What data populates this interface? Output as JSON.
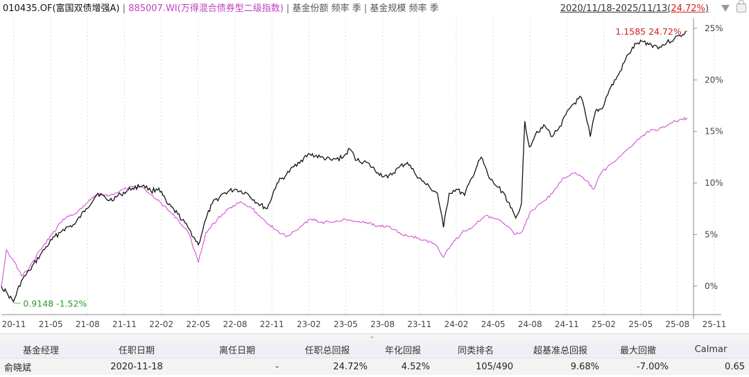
{
  "header": {
    "fund_code_name": "010435.OF(富国双债增强A)",
    "separator": "|",
    "index_code_name": "885007.WI(万得混合债券型二级指数)",
    "share_label": "基金份额 频率 季",
    "scale_label": "基金规模 频率 季",
    "date_range": "2020/11/18-2025/11/13",
    "range_return": "24.72%",
    "icons": [
      "chevron-down-icon",
      "lock-icon"
    ]
  },
  "chart_data": {
    "type": "line",
    "x_tick_labels": [
      "20-11",
      "21-05",
      "21-08",
      "21-11",
      "22-02",
      "22-05",
      "22-08",
      "22-11",
      "23-02",
      "23-05",
      "23-08",
      "23-11",
      "24-02",
      "24-05",
      "24-08",
      "24-11",
      "25-02",
      "25-05",
      "25-08",
      "25-11"
    ],
    "y_tick_labels": [
      "25%",
      "20%",
      "15%",
      "10%",
      "5%",
      "0%"
    ],
    "y_ticks": [
      25,
      20,
      15,
      10,
      5,
      0
    ],
    "ylim": [
      -2.5,
      26
    ],
    "xlim": [
      "2020-11-18",
      "2025-11-30"
    ],
    "y_axis_position": "right",
    "grid": "vertical-dotted",
    "colors": {
      "fund": "#111111",
      "index": "#cc44cc",
      "high_label": "#d21e1e",
      "low_label": "#2a9a2a"
    },
    "series": [
      {
        "key": "fund",
        "points": [
          [
            "2020-11-18",
            0.0
          ],
          [
            "2020-12-05",
            -0.8
          ],
          [
            "2020-12-20",
            -1.52
          ],
          [
            "2021-01-10",
            0.5
          ],
          [
            "2021-02-01",
            1.5
          ],
          [
            "2021-03-01",
            3.0
          ],
          [
            "2021-04-01",
            4.5
          ],
          [
            "2021-05-01",
            5.5
          ],
          [
            "2021-06-01",
            6.0
          ],
          [
            "2021-07-01",
            7.5
          ],
          [
            "2021-08-01",
            9.0
          ],
          [
            "2021-09-01",
            8.3
          ],
          [
            "2021-10-01",
            8.9
          ],
          [
            "2021-11-01",
            9.5
          ],
          [
            "2021-12-01",
            9.8
          ],
          [
            "2021-12-20",
            9.2
          ],
          [
            "2022-01-10",
            9.5
          ],
          [
            "2022-02-01",
            8.0
          ],
          [
            "2022-03-01",
            7.0
          ],
          [
            "2022-04-01",
            5.5
          ],
          [
            "2022-04-25",
            4.0
          ],
          [
            "2022-05-15",
            6.5
          ],
          [
            "2022-06-01",
            8.0
          ],
          [
            "2022-07-01",
            9.0
          ],
          [
            "2022-08-01",
            9.4
          ],
          [
            "2022-09-01",
            9.0
          ],
          [
            "2022-10-01",
            8.0
          ],
          [
            "2022-10-25",
            7.5
          ],
          [
            "2022-11-20",
            10.0
          ],
          [
            "2022-12-15",
            10.8
          ],
          [
            "2023-01-15",
            12.0
          ],
          [
            "2023-02-15",
            12.8
          ],
          [
            "2023-03-15",
            12.5
          ],
          [
            "2023-04-15",
            12.2
          ],
          [
            "2023-05-15",
            12.5
          ],
          [
            "2023-06-01",
            13.3
          ],
          [
            "2023-06-20",
            12.2
          ],
          [
            "2023-07-15",
            12.0
          ],
          [
            "2023-08-15",
            11.0
          ],
          [
            "2023-09-10",
            10.5
          ],
          [
            "2023-10-10",
            11.5
          ],
          [
            "2023-11-01",
            12.0
          ],
          [
            "2023-11-20",
            11.0
          ],
          [
            "2023-12-10",
            10.2
          ],
          [
            "2024-01-01",
            9.5
          ],
          [
            "2024-01-20",
            9.0
          ],
          [
            "2024-02-05",
            5.7
          ],
          [
            "2024-02-20",
            9.0
          ],
          [
            "2024-03-10",
            9.4
          ],
          [
            "2024-04-01",
            8.8
          ],
          [
            "2024-04-20",
            10.5
          ],
          [
            "2024-05-15",
            12.5
          ],
          [
            "2024-06-05",
            10.5
          ],
          [
            "2024-06-25",
            9.7
          ],
          [
            "2024-07-15",
            9.0
          ],
          [
            "2024-08-01",
            7.6
          ],
          [
            "2024-08-15",
            6.6
          ],
          [
            "2024-08-30",
            8.0
          ],
          [
            "2024-09-08",
            16.0
          ],
          [
            "2024-09-20",
            13.5
          ],
          [
            "2024-10-10",
            15.0
          ],
          [
            "2024-11-01",
            15.5
          ],
          [
            "2024-11-20",
            14.5
          ],
          [
            "2024-12-10",
            15.5
          ],
          [
            "2025-01-10",
            17.5
          ],
          [
            "2025-02-05",
            18.3
          ],
          [
            "2025-02-20",
            16.0
          ],
          [
            "2025-03-01",
            14.5
          ],
          [
            "2025-03-15",
            17.0
          ],
          [
            "2025-04-01",
            17.2
          ],
          [
            "2025-04-20",
            19.0
          ],
          [
            "2025-05-15",
            20.5
          ],
          [
            "2025-06-10",
            22.5
          ],
          [
            "2025-07-01",
            23.5
          ],
          [
            "2025-07-20",
            23.7
          ],
          [
            "2025-08-10",
            23.4
          ],
          [
            "2025-09-01",
            23.2
          ],
          [
            "2025-09-20",
            23.6
          ],
          [
            "2025-10-10",
            24.0
          ],
          [
            "2025-10-25",
            24.3
          ],
          [
            "2025-11-13",
            24.72
          ]
        ]
      },
      {
        "key": "index",
        "points": [
          [
            "2020-11-18",
            0.0
          ],
          [
            "2020-12-01",
            3.5
          ],
          [
            "2020-12-20",
            2.5
          ],
          [
            "2021-01-10",
            1.0
          ],
          [
            "2021-02-01",
            1.8
          ],
          [
            "2021-03-01",
            3.5
          ],
          [
            "2021-04-01",
            5.0
          ],
          [
            "2021-05-01",
            6.5
          ],
          [
            "2021-06-01",
            7.0
          ],
          [
            "2021-07-01",
            8.0
          ],
          [
            "2021-08-01",
            9.0
          ],
          [
            "2021-09-01",
            8.8
          ],
          [
            "2021-10-01",
            9.3
          ],
          [
            "2021-11-01",
            9.7
          ],
          [
            "2021-12-01",
            9.5
          ],
          [
            "2022-01-01",
            8.5
          ],
          [
            "2022-02-01",
            7.5
          ],
          [
            "2022-03-01",
            6.5
          ],
          [
            "2022-04-01",
            5.0
          ],
          [
            "2022-04-25",
            2.3
          ],
          [
            "2022-05-15",
            5.2
          ],
          [
            "2022-06-15",
            6.5
          ],
          [
            "2022-07-15",
            7.5
          ],
          [
            "2022-08-15",
            8.2
          ],
          [
            "2022-09-15",
            7.5
          ],
          [
            "2022-10-15",
            6.5
          ],
          [
            "2022-11-15",
            5.5
          ],
          [
            "2022-12-15",
            4.8
          ],
          [
            "2023-01-15",
            5.5
          ],
          [
            "2023-02-15",
            6.5
          ],
          [
            "2023-03-15",
            6.2
          ],
          [
            "2023-04-15",
            6.2
          ],
          [
            "2023-05-15",
            6.5
          ],
          [
            "2023-06-15",
            6.3
          ],
          [
            "2023-07-15",
            6.2
          ],
          [
            "2023-08-15",
            5.8
          ],
          [
            "2023-09-15",
            5.8
          ],
          [
            "2023-10-15",
            5.0
          ],
          [
            "2023-11-15",
            4.8
          ],
          [
            "2023-12-15",
            4.5
          ],
          [
            "2024-01-15",
            4.0
          ],
          [
            "2024-02-05",
            2.8
          ],
          [
            "2024-02-25",
            4.0
          ],
          [
            "2024-03-25",
            5.2
          ],
          [
            "2024-04-25",
            5.8
          ],
          [
            "2024-05-25",
            6.8
          ],
          [
            "2024-06-25",
            6.5
          ],
          [
            "2024-07-25",
            5.8
          ],
          [
            "2024-08-15",
            5.0
          ],
          [
            "2024-08-30",
            5.2
          ],
          [
            "2024-09-20",
            7.0
          ],
          [
            "2024-10-20",
            8.0
          ],
          [
            "2024-11-20",
            9.0
          ],
          [
            "2024-12-20",
            10.5
          ],
          [
            "2025-01-20",
            11.0
          ],
          [
            "2025-02-20",
            10.2
          ],
          [
            "2025-03-10",
            9.4
          ],
          [
            "2025-03-30",
            11.0
          ],
          [
            "2025-04-30",
            12.0
          ],
          [
            "2025-05-30",
            13.0
          ],
          [
            "2025-06-30",
            14.0
          ],
          [
            "2025-07-30",
            15.0
          ],
          [
            "2025-08-30",
            15.2
          ],
          [
            "2025-09-30",
            15.8
          ],
          [
            "2025-10-20",
            16.0
          ],
          [
            "2025-11-13",
            16.3
          ]
        ]
      }
    ],
    "annotations": {
      "high": {
        "text": "1.1585 24.72%",
        "x": "2025-11-13",
        "y": 24.72
      },
      "low": {
        "text": "0.9148 -1.52%",
        "x": "2020-12-20",
        "y": -1.52
      }
    }
  },
  "manager_table": {
    "headers": [
      "基金经理",
      "任职日期",
      "离任日期",
      "任职总回报",
      "年化回报",
      "同类排名",
      "超基准总回报",
      "最大回撤",
      "Calmar"
    ],
    "rows": [
      [
        "俞晓斌",
        "2020-11-18",
        "-",
        "24.72%",
        "4.52%",
        "105/490",
        "9.68%",
        "-7.00%",
        "0.65"
      ]
    ]
  }
}
